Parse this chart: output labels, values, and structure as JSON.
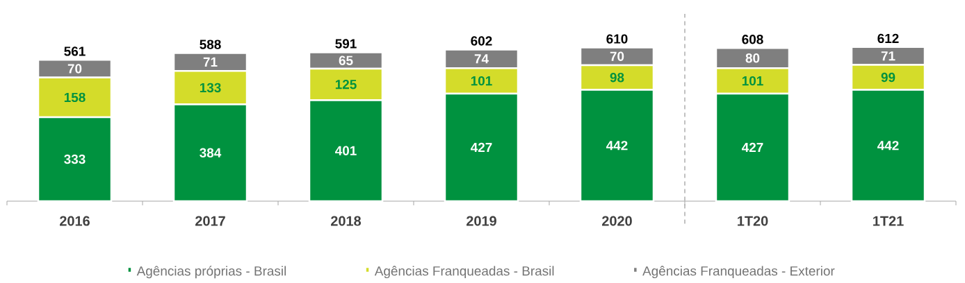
{
  "chart_data": {
    "type": "bar",
    "stacked": true,
    "categories": [
      "2016",
      "2017",
      "2018",
      "2019",
      "2020",
      "1T20",
      "1T21"
    ],
    "series": [
      {
        "name": "Agências próprias - Brasil",
        "color": "#00923f",
        "values": [
          333,
          384,
          401,
          427,
          442,
          427,
          442
        ]
      },
      {
        "name": "Agências Franqueadas - Brasil",
        "color": "#d4dc2a",
        "values": [
          158,
          133,
          125,
          101,
          98,
          101,
          99
        ]
      },
      {
        "name": "Agências Franqueadas - Exterior",
        "color": "#7f7f7f",
        "values": [
          70,
          71,
          65,
          74,
          70,
          80,
          71
        ]
      }
    ],
    "totals": [
      "561",
      "588",
      "591",
      "602",
      "610",
      "608",
      "612"
    ],
    "data_labels": true,
    "legend": "bottom"
  }
}
